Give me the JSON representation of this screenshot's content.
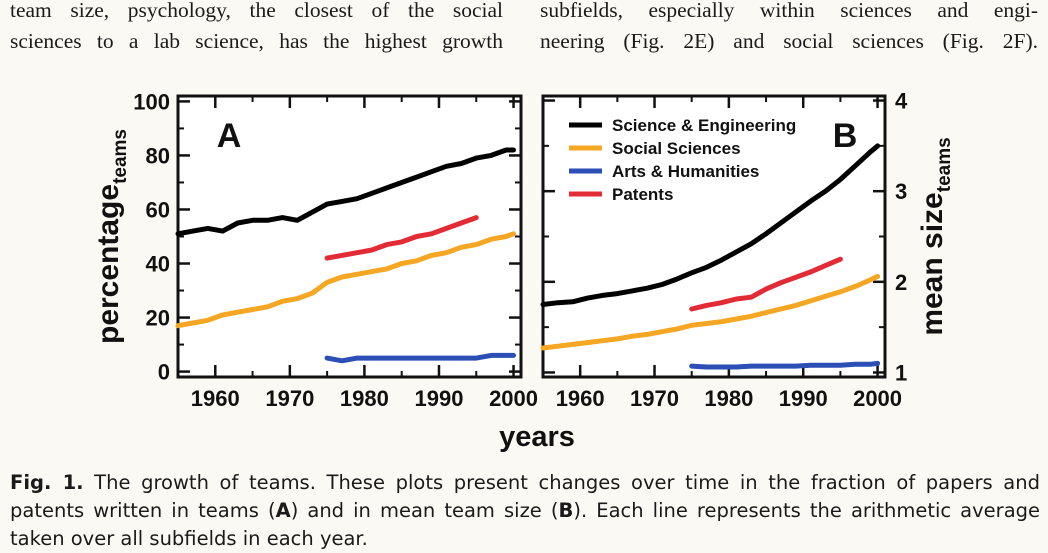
{
  "body_text": {
    "left_lines": [
      "team size, psychology, the closest of the social",
      "sciences to a lab science, has the highest growth"
    ],
    "right_lines": [
      "subfields, especially within sciences and engi-",
      "neering (Fig. 2E) and social sciences (Fig. 2F)."
    ]
  },
  "figure": {
    "x_axis_title": "years",
    "colors": {
      "science_engineering": "#000000",
      "social_sciences": "#f5a623",
      "arts_humanities": "#2b4fb5",
      "patents": "#e32b36"
    }
  },
  "chart_data": [
    {
      "type": "line",
      "panel_label": "A",
      "ylabel": "percentage",
      "ylabel_subscript": "teams",
      "xlabel": "years",
      "xlim": [
        1955,
        2001
      ],
      "ylim": [
        -2,
        102
      ],
      "xticks": [
        "1960",
        "1970",
        "1980",
        "1990",
        "2000"
      ],
      "yticks": [
        "0",
        "20",
        "40",
        "60",
        "80",
        "100"
      ],
      "series": [
        {
          "name": "Science & Engineering",
          "color": "#000000",
          "x": [
            1955,
            1957,
            1959,
            1961,
            1963,
            1965,
            1967,
            1969,
            1971,
            1973,
            1975,
            1977,
            1979,
            1981,
            1983,
            1985,
            1987,
            1989,
            1991,
            1993,
            1995,
            1997,
            1999,
            2000
          ],
          "y": [
            51,
            52,
            53,
            52,
            55,
            56,
            56,
            57,
            56,
            59,
            62,
            63,
            64,
            66,
            68,
            70,
            72,
            74,
            76,
            77,
            79,
            80,
            82,
            82
          ]
        },
        {
          "name": "Social Sciences",
          "color": "#f5a623",
          "x": [
            1955,
            1957,
            1959,
            1961,
            1963,
            1965,
            1967,
            1969,
            1971,
            1973,
            1975,
            1977,
            1979,
            1981,
            1983,
            1985,
            1987,
            1989,
            1991,
            1993,
            1995,
            1997,
            1999,
            2000
          ],
          "y": [
            17,
            18,
            19,
            21,
            22,
            23,
            24,
            26,
            27,
            29,
            33,
            35,
            36,
            37,
            38,
            40,
            41,
            43,
            44,
            46,
            47,
            49,
            50,
            51
          ]
        },
        {
          "name": "Arts & Humanities",
          "color": "#2b4fb5",
          "x": [
            1975,
            1977,
            1979,
            1981,
            1983,
            1985,
            1987,
            1989,
            1991,
            1993,
            1995,
            1997,
            1999,
            2000
          ],
          "y": [
            5,
            4,
            5,
            5,
            5,
            5,
            5,
            5,
            5,
            5,
            5,
            6,
            6,
            6
          ]
        },
        {
          "name": "Patents",
          "color": "#e32b36",
          "x": [
            1975,
            1977,
            1979,
            1981,
            1983,
            1985,
            1987,
            1989,
            1991,
            1993,
            1995
          ],
          "y": [
            42,
            43,
            44,
            45,
            47,
            48,
            50,
            51,
            53,
            55,
            57
          ]
        }
      ]
    },
    {
      "type": "line",
      "panel_label": "B",
      "ylabel": "mean size",
      "ylabel_subscript": "teams",
      "xlabel": "years",
      "xlim": [
        1955,
        2001
      ],
      "ylim": [
        0.95,
        4.05
      ],
      "xticks": [
        "1960",
        "1970",
        "1980",
        "1990",
        "2000"
      ],
      "yticks": [
        "1",
        "2",
        "3",
        "4"
      ],
      "legend_position": "top-left",
      "series": [
        {
          "name": "Science & Engineering",
          "color": "#000000",
          "x": [
            1955,
            1957,
            1959,
            1961,
            1963,
            1965,
            1967,
            1969,
            1971,
            1973,
            1975,
            1977,
            1979,
            1981,
            1983,
            1985,
            1987,
            1989,
            1991,
            1993,
            1995,
            1997,
            1999,
            2000
          ],
          "y": [
            1.75,
            1.77,
            1.78,
            1.82,
            1.85,
            1.87,
            1.9,
            1.93,
            1.97,
            2.03,
            2.1,
            2.16,
            2.24,
            2.33,
            2.42,
            2.53,
            2.65,
            2.77,
            2.89,
            3.0,
            3.13,
            3.28,
            3.43,
            3.5
          ]
        },
        {
          "name": "Social Sciences",
          "color": "#f5a623",
          "x": [
            1955,
            1957,
            1959,
            1961,
            1963,
            1965,
            1967,
            1969,
            1971,
            1973,
            1975,
            1977,
            1979,
            1981,
            1983,
            1985,
            1987,
            1989,
            1991,
            1993,
            1995,
            1997,
            1999,
            2000
          ],
          "y": [
            1.27,
            1.29,
            1.31,
            1.33,
            1.35,
            1.37,
            1.4,
            1.42,
            1.45,
            1.48,
            1.52,
            1.54,
            1.56,
            1.59,
            1.62,
            1.66,
            1.7,
            1.74,
            1.79,
            1.84,
            1.89,
            1.95,
            2.02,
            2.06
          ]
        },
        {
          "name": "Arts & Humanities",
          "color": "#2b4fb5",
          "x": [
            1975,
            1977,
            1979,
            1981,
            1983,
            1985,
            1987,
            1989,
            1991,
            1993,
            1995,
            1997,
            1999,
            2000
          ],
          "y": [
            1.07,
            1.06,
            1.06,
            1.06,
            1.07,
            1.07,
            1.07,
            1.07,
            1.08,
            1.08,
            1.08,
            1.09,
            1.09,
            1.1
          ]
        },
        {
          "name": "Patents",
          "color": "#e32b36",
          "x": [
            1975,
            1977,
            1979,
            1981,
            1983,
            1985,
            1987,
            1989,
            1991,
            1993,
            1995
          ],
          "y": [
            1.7,
            1.74,
            1.77,
            1.81,
            1.83,
            1.92,
            1.99,
            2.05,
            2.11,
            2.18,
            2.25
          ]
        }
      ]
    }
  ],
  "caption": {
    "label": "Fig. 1.",
    "line1_text": " The growth of teams. These plots present changes over time in the fraction of papers and",
    "line2_pre": "patents written in teams (",
    "panel_a": "A",
    "line2_mid": ") and in mean team size (",
    "panel_b": "B",
    "line2_post": "). Each line represents the arithmetic average",
    "line3": "taken over all subfields in each year."
  }
}
